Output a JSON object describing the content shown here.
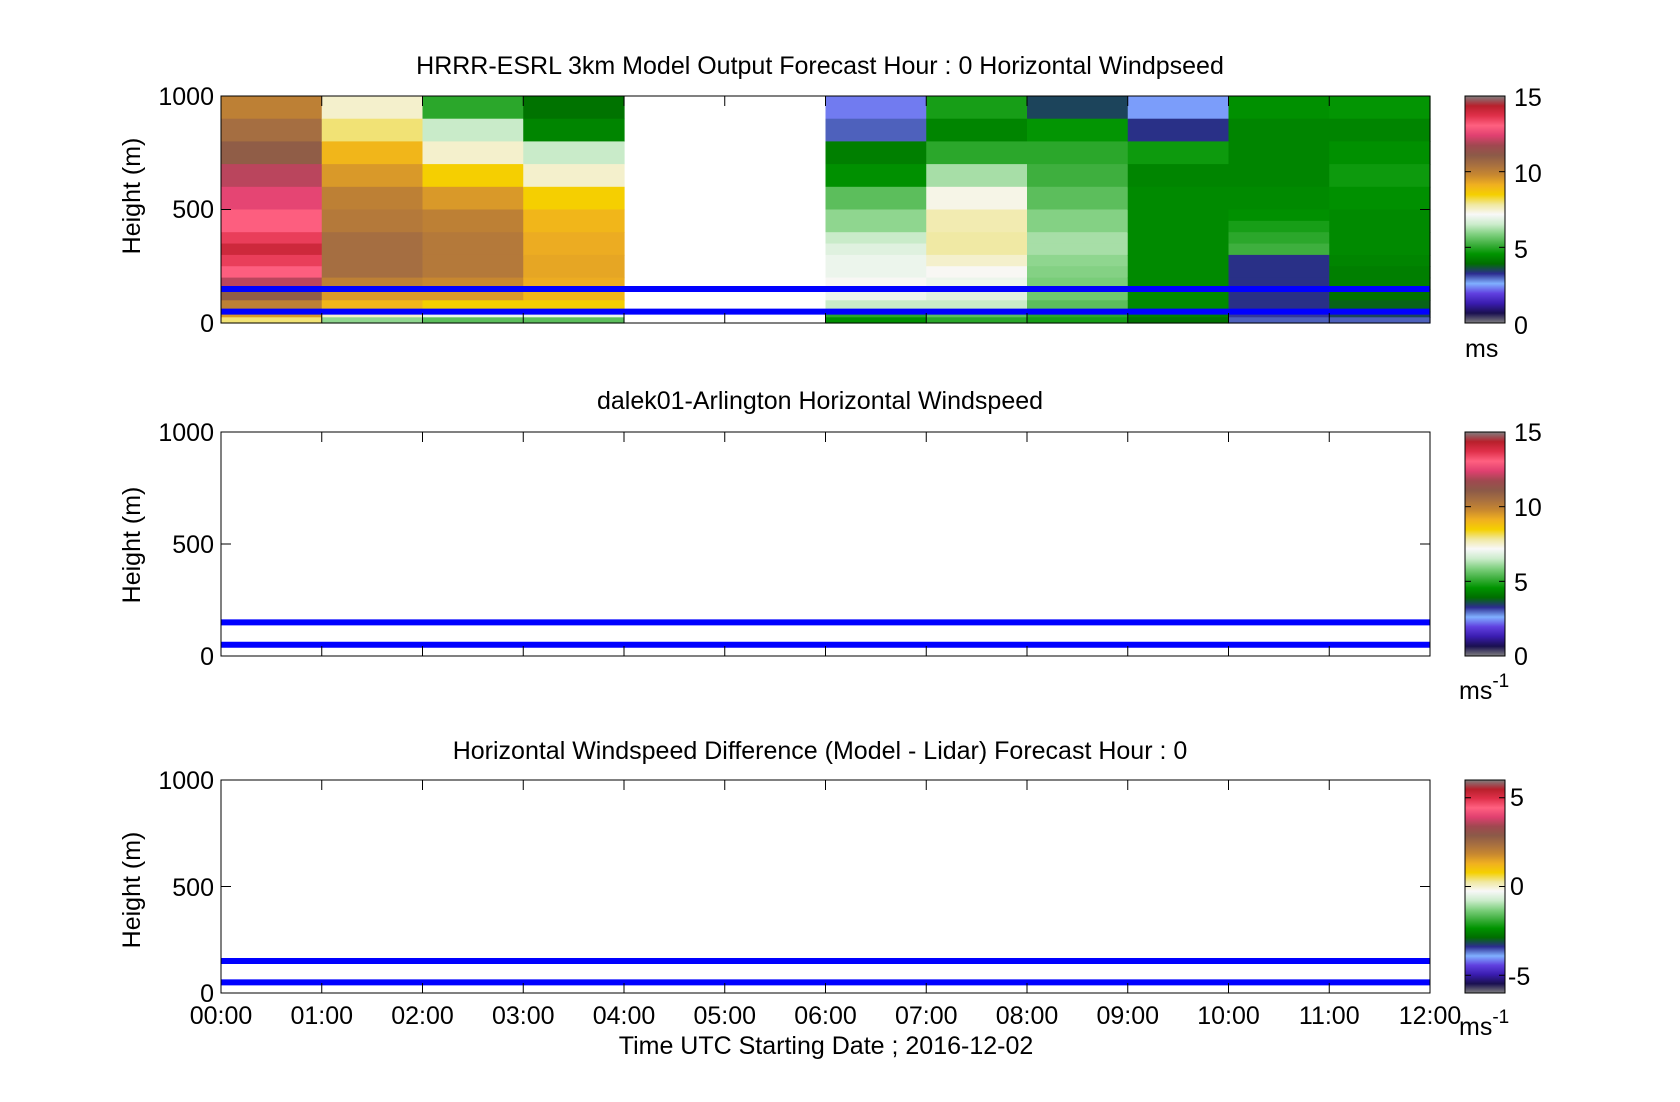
{
  "chart_data": [
    {
      "type": "heatmap",
      "title": "HRRR-ESRL 3km Model Output   Forecast Hour : 0 Horizontal Windpseed",
      "ylabel": "Height (m)",
      "xlabel": "",
      "ylim": [
        0,
        1000
      ],
      "yticks": [
        "0",
        "500",
        "1000"
      ],
      "colorbar": {
        "ticks": [
          "0",
          "5",
          "10",
          "15"
        ],
        "range": [
          0,
          15
        ],
        "unit": "ms",
        "unit_sup": ""
      },
      "reference_lines_m": [
        150,
        50
      ],
      "columns": [
        {
          "start_hour": 0,
          "end_hour": 1,
          "z_top": [
            1000,
            900,
            800,
            700,
            600,
            500,
            400,
            350,
            300,
            250,
            200,
            150,
            100,
            50,
            25
          ],
          "speed": [
            10,
            10.5,
            11,
            12,
            12.5,
            13,
            13.5,
            14,
            13.5,
            13,
            12,
            11,
            10,
            9.5,
            8
          ]
        },
        {
          "start_hour": 1,
          "end_hour": 2,
          "z_top": [
            1000,
            900,
            800,
            700,
            600,
            500,
            400,
            300,
            200,
            150,
            100,
            50,
            25
          ],
          "speed": [
            7.5,
            8,
            9,
            9.5,
            10,
            10.2,
            10.5,
            10.5,
            10,
            9.5,
            9,
            7.5,
            6
          ]
        },
        {
          "start_hour": 2,
          "end_hour": 3,
          "z_top": [
            1000,
            900,
            800,
            700,
            600,
            500,
            400,
            300,
            200,
            150,
            100,
            50,
            25
          ],
          "speed": [
            5,
            6.5,
            7.5,
            8.5,
            9.5,
            10,
            10.2,
            10.2,
            9.8,
            9.5,
            8.5,
            7,
            5.5
          ]
        },
        {
          "start_hour": 3,
          "end_hour": 4,
          "z_top": [
            1000,
            900,
            800,
            700,
            600,
            500,
            400,
            300,
            200,
            150,
            100,
            50,
            25
          ],
          "speed": [
            4,
            4.3,
            6.5,
            7.5,
            8.5,
            9,
            9.2,
            9.3,
            9.2,
            9,
            8.5,
            7,
            5.5
          ]
        },
        {
          "start_hour": 6,
          "end_hour": 7,
          "z_top": [
            1000,
            900,
            800,
            700,
            600,
            500,
            400,
            350,
            300,
            250,
            200,
            150,
            100,
            50,
            25
          ],
          "speed": [
            2.3,
            3,
            4.2,
            4.5,
            5.5,
            6,
            6.5,
            6.8,
            7,
            7,
            7.2,
            7,
            6.5,
            5,
            4.5
          ]
        },
        {
          "start_hour": 7,
          "end_hour": 8,
          "z_top": [
            1000,
            900,
            800,
            700,
            600,
            500,
            400,
            350,
            300,
            250,
            200,
            150,
            100,
            50,
            25
          ],
          "speed": [
            4.8,
            4.3,
            5,
            6.2,
            7.3,
            7.7,
            7.8,
            7.8,
            7.5,
            7.2,
            7,
            6.8,
            6.5,
            5.5,
            5
          ]
        },
        {
          "start_hour": 8,
          "end_hour": 9,
          "z_top": [
            1000,
            900,
            800,
            700,
            600,
            500,
            400,
            350,
            300,
            250,
            200,
            150,
            100,
            50,
            25
          ],
          "speed": [
            3.5,
            4.6,
            5,
            5.2,
            5.5,
            5.9,
            6.2,
            6.2,
            6,
            5.9,
            5.8,
            5.7,
            5.5,
            5,
            4.8
          ]
        },
        {
          "start_hour": 9,
          "end_hour": 10,
          "z_top": [
            1000,
            900,
            800,
            700,
            600,
            500,
            400,
            300,
            200,
            150,
            100,
            50,
            25
          ],
          "speed": [
            2.5,
            3.3,
            4.7,
            4.3,
            4.4,
            4.4,
            4.4,
            4.4,
            4.4,
            4.4,
            4.4,
            4.2,
            4
          ]
        },
        {
          "start_hour": 10,
          "end_hour": 11,
          "z_top": [
            1000,
            900,
            800,
            700,
            600,
            500,
            450,
            400,
            350,
            300,
            200,
            150,
            100,
            50,
            25
          ],
          "speed": [
            4.5,
            4.3,
            4.3,
            4.3,
            4.4,
            4.5,
            4.8,
            5,
            5.2,
            3.3,
            3.3,
            3.3,
            3.3,
            3.2,
            3
          ]
        },
        {
          "start_hour": 11,
          "end_hour": 12,
          "z_top": [
            1000,
            900,
            800,
            700,
            600,
            500,
            400,
            300,
            250,
            200,
            150,
            100,
            50,
            25
          ],
          "speed": [
            4.6,
            4.3,
            4.5,
            4.7,
            4.5,
            4.4,
            4.4,
            4.3,
            4.2,
            4.2,
            4,
            3.8,
            3.5,
            3
          ]
        }
      ]
    },
    {
      "type": "heatmap",
      "title": "dalek01-Arlington  Horizontal Windspeed",
      "ylabel": "Height (m)",
      "xlabel": "",
      "ylim": [
        0,
        1000
      ],
      "yticks": [
        "0",
        "500",
        "1000"
      ],
      "colorbar": {
        "ticks": [
          "0",
          "5",
          "10",
          "15"
        ],
        "range": [
          0,
          15
        ],
        "unit": "ms",
        "unit_sup": "-1"
      },
      "reference_lines_m": [
        150,
        50
      ],
      "columns": []
    },
    {
      "type": "heatmap",
      "title": "Horizontal Windspeed Difference (Model - Lidar) Forecast Hour : 0",
      "ylabel": "Height (m)",
      "xlabel": "Time UTC  Starting Date ; 2016-12-02",
      "ylim": [
        0,
        1000
      ],
      "yticks": [
        "0",
        "500",
        "1000"
      ],
      "xticks": [
        "00:00",
        "01:00",
        "02:00",
        "03:00",
        "04:00",
        "05:00",
        "06:00",
        "07:00",
        "08:00",
        "09:00",
        "10:00",
        "11:00",
        "12:00"
      ],
      "colorbar": {
        "ticks": [
          "-5",
          "0",
          "5"
        ],
        "range": [
          -6,
          6
        ],
        "unit": "ms",
        "unit_sup": "-1"
      },
      "reference_lines_m": [
        150,
        50
      ],
      "columns": []
    }
  ],
  "colors": {
    "reference_line": "#0000ff",
    "colormap_stops": [
      "#7f7f7f",
      "#1a1050",
      "#3a1cb0",
      "#6040e0",
      "#80b0ff",
      "#2c2c90",
      "#006e00",
      "#009400",
      "#40b040",
      "#80d080",
      "#cceccc",
      "#f8f8f8",
      "#f0e8a0",
      "#f5d000",
      "#f0b020",
      "#c88830",
      "#a87040",
      "#8c5a48",
      "#a04850",
      "#e04070",
      "#ff6080",
      "#e0304a",
      "#b8202c",
      "#7f7f7f"
    ]
  }
}
